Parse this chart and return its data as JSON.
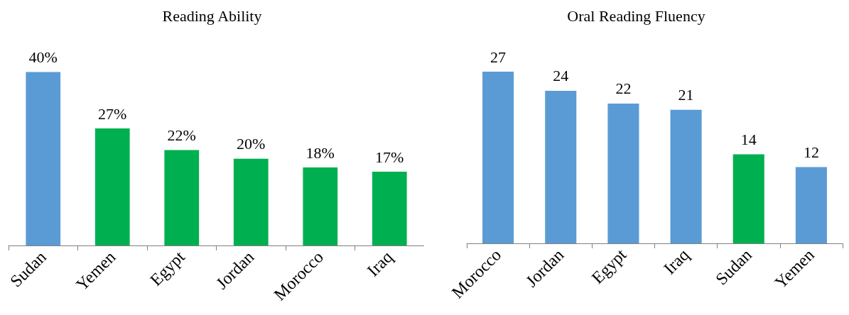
{
  "chart_data": [
    {
      "type": "bar",
      "title": "Reading Ability",
      "categories": [
        "Sudan",
        "Yemen",
        "Egypt",
        "Jordan",
        "Morocco",
        "Iraq"
      ],
      "values": [
        40,
        27,
        22,
        20,
        18,
        17
      ],
      "colors": [
        "#5b9bd5",
        "#00b050",
        "#00b050",
        "#00b050",
        "#00b050",
        "#00b050"
      ],
      "value_labels": [
        "40%",
        "27%",
        "22%",
        "20%",
        "18%",
        "17%"
      ],
      "tick_labels": "x"
    },
    {
      "type": "bar",
      "title": "Oral Reading Fluency",
      "categories": [
        "Morocco",
        "Jordan",
        "Egypt",
        "Iraq",
        "Sudan",
        "Yemen"
      ],
      "values": [
        27,
        24,
        22,
        21,
        14,
        12
      ],
      "colors": [
        "#5b9bd5",
        "#5b9bd5",
        "#5b9bd5",
        "#5b9bd5",
        "#00b050",
        "#5b9bd5"
      ],
      "data_labels": true,
      "tick_labels": "x"
    }
  ]
}
